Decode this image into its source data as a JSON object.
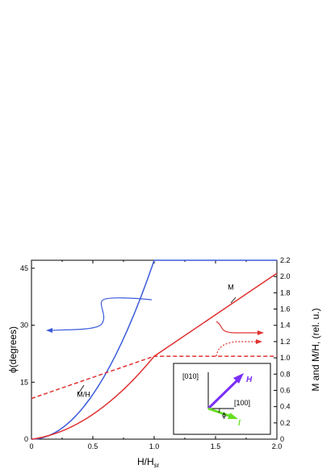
{
  "chart_data": {
    "type": "line",
    "xlabel_main": "H/H",
    "xlabel_sub": "sr",
    "ylabel_left": "ϕ(degrees)",
    "ylabel_right": "M and M/H, (rel. u.)",
    "xlim": [
      0,
      2.0
    ],
    "ylim_left": [
      0,
      47.1
    ],
    "ylim_right": [
      0,
      2.2
    ],
    "x_ticks": [
      "0",
      "0.5",
      "1.0",
      "1.5",
      "2.0"
    ],
    "x_tick_values": [
      0,
      0.5,
      1.0,
      1.5,
      2.0
    ],
    "y_left_ticks": [
      "0",
      "15",
      "30",
      "45"
    ],
    "y_left_tick_values": [
      0,
      15,
      30,
      45
    ],
    "y_right_ticks": [
      "0",
      "0.2",
      "0.4",
      "0.6",
      "0.8",
      "1.0",
      "1.2",
      "1.4",
      "1.6",
      "1.8",
      "2.0",
      "2.2"
    ],
    "y_right_tick_values": [
      0,
      0.2,
      0.4,
      0.6,
      0.8,
      1.0,
      1.2,
      1.4,
      1.6,
      1.8,
      2.0,
      2.2
    ],
    "series": [
      {
        "name": "ϕ",
        "axis": "left",
        "color": "#3b5bdb",
        "style": "solid",
        "x": [
          0,
          0.1,
          0.2,
          0.3,
          0.4,
          0.5,
          0.6,
          0.7,
          0.8,
          0.9,
          0.95,
          1.0,
          1.0,
          1.5,
          2.0
        ],
        "y": [
          0,
          0.5,
          2.0,
          4.5,
          8.1,
          12.6,
          18.2,
          24.8,
          32.4,
          41.0,
          45.8,
          47.1,
          47.1,
          47.1,
          47.1
        ]
      },
      {
        "name": "M",
        "axis": "right",
        "color": "#e03131",
        "style": "solid",
        "x": [
          0,
          0.2,
          0.4,
          0.6,
          0.8,
          1.0,
          1.5,
          2.0
        ],
        "y": [
          0,
          0.08,
          0.22,
          0.42,
          0.72,
          1.02,
          1.53,
          2.04
        ]
      },
      {
        "name": "M/H",
        "axis": "right",
        "color": "#e03131",
        "style": "dashed",
        "x": [
          0,
          1.0,
          1.0,
          2.0
        ],
        "y": [
          0.5,
          1.02,
          1.02,
          1.02
        ]
      }
    ],
    "annotations": [
      {
        "text": "M",
        "x": 1.6,
        "y": 1.84
      },
      {
        "text": "M/H",
        "x": 0.37,
        "y": 0.52
      }
    ],
    "inset": {
      "labels": [
        "[010]",
        "[100]",
        "ϕ"
      ],
      "vector_H": "H",
      "vector_l": "l",
      "color_H": "#7b2ff7",
      "color_l": "#66dd22"
    }
  }
}
